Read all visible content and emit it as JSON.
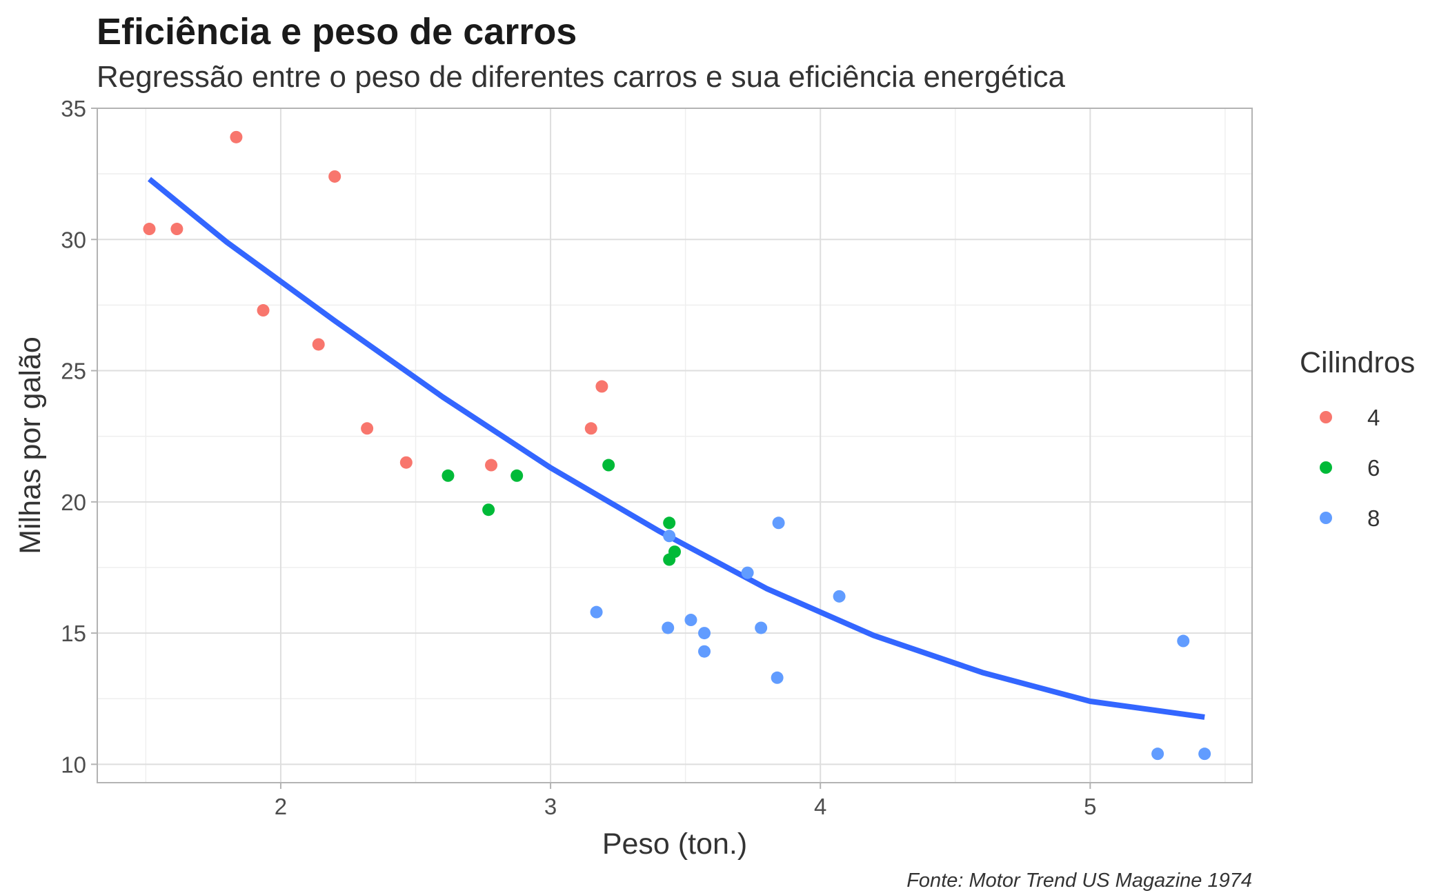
{
  "chart_data": {
    "type": "scatter",
    "title": "Eficiência e peso de carros",
    "subtitle": "Regressão entre o peso de diferentes carros e sua eficiência energética",
    "xlabel": "Peso (ton.)",
    "ylabel": "Milhas por galão",
    "caption": "Fonte: Motor Trend US Magazine 1974",
    "xlim": [
      1.32,
      5.6
    ],
    "ylim": [
      9.3,
      35.0
    ],
    "x_ticks": [
      2,
      3,
      4,
      5
    ],
    "y_ticks": [
      10,
      15,
      20,
      25,
      30,
      35
    ],
    "x_minor": [
      1.5,
      2.5,
      3.5,
      4.5,
      5.5
    ],
    "y_minor": [
      12.5,
      17.5,
      22.5,
      27.5,
      32.5
    ],
    "grid": true,
    "legend": {
      "title": "Cilindros",
      "placement": "right",
      "entries": [
        "4",
        "6",
        "8"
      ]
    },
    "colors": {
      "4": "#F8766D",
      "6": "#00BA38",
      "8": "#619CFF",
      "fit": "#3366FF"
    },
    "series": [
      {
        "name": "4",
        "points": [
          [
            2.32,
            22.8
          ],
          [
            3.19,
            24.4
          ],
          [
            3.15,
            22.8
          ],
          [
            2.2,
            32.4
          ],
          [
            1.615,
            30.4
          ],
          [
            1.835,
            33.9
          ],
          [
            2.465,
            21.5
          ],
          [
            1.935,
            27.3
          ],
          [
            2.14,
            26.0
          ],
          [
            1.513,
            30.4
          ],
          [
            2.78,
            21.4
          ]
        ]
      },
      {
        "name": "6",
        "points": [
          [
            2.62,
            21.0
          ],
          [
            2.875,
            21.0
          ],
          [
            3.215,
            21.4
          ],
          [
            3.46,
            18.1
          ],
          [
            3.44,
            19.2
          ],
          [
            3.44,
            17.8
          ],
          [
            2.77,
            19.7
          ]
        ]
      },
      {
        "name": "8",
        "points": [
          [
            3.44,
            18.7
          ],
          [
            3.57,
            14.3
          ],
          [
            4.07,
            16.4
          ],
          [
            3.73,
            17.3
          ],
          [
            3.78,
            15.2
          ],
          [
            5.25,
            10.4
          ],
          [
            5.424,
            10.4
          ],
          [
            5.345,
            14.7
          ],
          [
            3.52,
            15.5
          ],
          [
            3.435,
            15.2
          ],
          [
            3.84,
            13.3
          ],
          [
            3.845,
            19.2
          ],
          [
            3.17,
            15.8
          ],
          [
            3.57,
            15.0
          ]
        ]
      }
    ],
    "fit_curve": {
      "name": "regressão",
      "x": [
        1.513,
        1.8,
        2.2,
        2.6,
        3.0,
        3.4,
        3.8,
        4.2,
        4.6,
        5.0,
        5.424
      ],
      "y": [
        32.3,
        29.9,
        26.9,
        24.0,
        21.3,
        18.9,
        16.7,
        14.9,
        13.5,
        12.4,
        11.8
      ]
    }
  }
}
